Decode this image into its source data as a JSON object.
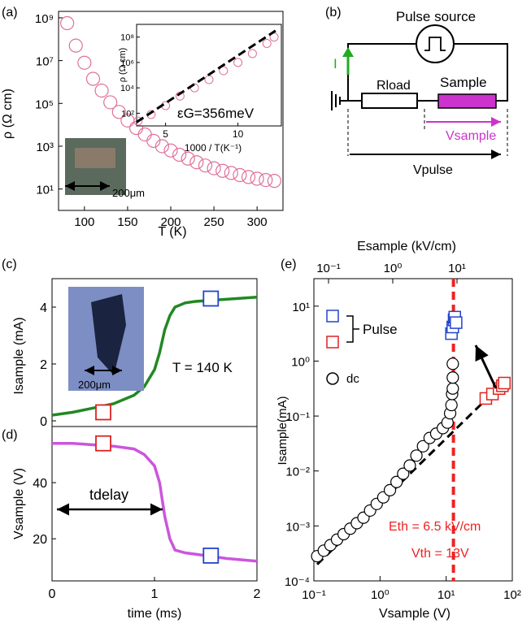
{
  "panels": {
    "a": {
      "label": "(a)",
      "xlabel": "T (K)",
      "ylabel": "ρ (Ω cm)",
      "scale_label": "200μm",
      "inset": {
        "xlabel": "1000 / T(K⁻¹)",
        "ylabel": "ρ (Ω cm)",
        "annotation": "εG=356meV",
        "xticks": [
          "5",
          "10"
        ],
        "yticks": [
          "10²",
          "10⁴",
          "10⁶",
          "10⁸"
        ]
      },
      "xticks": [
        "100",
        "150",
        "200",
        "250",
        "300"
      ],
      "yticks": [
        "10¹",
        "10³",
        "10⁵",
        "10⁷",
        "10⁹"
      ]
    },
    "b": {
      "label": "(b)",
      "pulse_source": "Pulse source",
      "current": "I",
      "rload": "Rload",
      "sample": "Sample",
      "vsample": "Vsample",
      "vpulse": "Vpulse",
      "colors": {
        "sample_fill": "#cc33cc",
        "arrow_current": "#22aa22",
        "arrow_vsample": "#cc33cc"
      }
    },
    "c": {
      "label": "(c)",
      "ylabel": "Isample (mA)",
      "annotation": "T = 140 K",
      "scale_label": "200μm",
      "yticks": [
        "0",
        "2",
        "4"
      ]
    },
    "d": {
      "label": "(d)",
      "ylabel": "Vsample (V)",
      "xlabel": "time (ms)",
      "annotation": "tdelay",
      "xticks": [
        "0",
        "1",
        "2"
      ],
      "yticks": [
        "20",
        "40"
      ]
    },
    "e": {
      "label": "(e)",
      "xlabel": "Vsample (V)",
      "ylabel": "Isample(mA)",
      "top_xlabel": "Esample (kV/cm)",
      "legend_pulse": "Pulse",
      "legend_dc": "dc",
      "eth": "Eth = 6.5 kV/cm",
      "vth": "Vth = 13V",
      "xticks": [
        "10⁻¹",
        "10⁰",
        "10¹",
        "10²"
      ],
      "top_xticks": [
        "10⁻¹",
        "10⁰",
        "10¹"
      ],
      "yticks": [
        "10⁻⁴",
        "10⁻³",
        "10⁻²",
        "10⁻¹",
        "10⁰",
        "10¹"
      ]
    }
  },
  "chart_data": [
    {
      "type": "scatter",
      "panel": "a",
      "xlabel": "T (K)",
      "ylabel": "ρ (Ω cm)",
      "xlim": [
        70,
        330
      ],
      "ylim_log10": [
        0,
        9.3
      ],
      "x": [
        80,
        90,
        100,
        110,
        120,
        130,
        140,
        150,
        160,
        170,
        180,
        190,
        200,
        210,
        220,
        230,
        240,
        250,
        260,
        270,
        280,
        290,
        300,
        310,
        320
      ],
      "log10_y": [
        8.75,
        7.7,
        6.9,
        6.15,
        5.6,
        5.05,
        4.6,
        4.2,
        3.85,
        3.55,
        3.25,
        3.0,
        2.8,
        2.6,
        2.42,
        2.25,
        2.1,
        1.97,
        1.85,
        1.75,
        1.65,
        1.56,
        1.48,
        1.42,
        1.38
      ],
      "color": "#e0709a"
    },
    {
      "type": "scatter",
      "panel": "a-inset",
      "xlabel": "1000 / T(K⁻¹)",
      "ylabel": "ρ (Ω cm)",
      "xlim": [
        3,
        13
      ],
      "ylim_log10": [
        1,
        9
      ],
      "x": [
        3.1,
        4,
        5,
        6,
        7,
        8,
        9,
        10,
        11,
        12,
        12.5
      ],
      "log10_y": [
        1.38,
        1.9,
        2.6,
        3.35,
        4.0,
        4.65,
        5.35,
        6.0,
        6.7,
        7.5,
        8.0
      ],
      "fit_x": [
        3.0,
        12.6
      ],
      "fit_log10_y": [
        1.3,
        8.5
      ],
      "color": "#e0709a"
    },
    {
      "type": "line",
      "panel": "c",
      "xlabel": "time (ms)",
      "ylabel": "Isample (mA)",
      "xlim": [
        0,
        2
      ],
      "ylim": [
        -0.2,
        5.0
      ],
      "x": [
        0,
        0.2,
        0.4,
        0.6,
        0.8,
        0.9,
        1.0,
        1.05,
        1.1,
        1.15,
        1.2,
        1.3,
        1.4,
        1.6,
        1.8,
        2.0
      ],
      "y": [
        0.2,
        0.3,
        0.45,
        0.6,
        0.9,
        1.2,
        1.8,
        2.4,
        3.2,
        3.7,
        4.0,
        4.15,
        4.2,
        4.25,
        4.3,
        4.35
      ],
      "markers": [
        {
          "x": 0.5,
          "y": 0.3,
          "color": "#dd2222"
        },
        {
          "x": 1.55,
          "y": 4.3,
          "color": "#2244cc"
        }
      ],
      "color": "#228822"
    },
    {
      "type": "line",
      "panel": "d",
      "xlabel": "time (ms)",
      "ylabel": "Vsample (V)",
      "xlim": [
        0,
        2
      ],
      "ylim": [
        5,
        60
      ],
      "x": [
        0,
        0.2,
        0.4,
        0.6,
        0.8,
        0.9,
        1.0,
        1.05,
        1.1,
        1.15,
        1.2,
        1.3,
        1.5,
        1.7,
        2.0
      ],
      "y": [
        54,
        54,
        53.5,
        53,
        52,
        50,
        46,
        40,
        28,
        20,
        16,
        15,
        14,
        13,
        12
      ],
      "markers": [
        {
          "x": 0.5,
          "y": 54,
          "color": "#dd2222"
        },
        {
          "x": 1.55,
          "y": 14,
          "color": "#2244cc"
        }
      ],
      "color": "#cc55dd"
    },
    {
      "type": "scatter",
      "panel": "e",
      "xlabel": "Vsample (V)",
      "ylabel": "Isample(mA)",
      "xlim_log10": [
        -1,
        2
      ],
      "ylim_log10": [
        -4,
        1.5
      ],
      "series": [
        {
          "name": "dc",
          "color": "#000000",
          "log10_x": [
            -0.95,
            -0.85,
            -0.75,
            -0.65,
            -0.55,
            -0.45,
            -0.35,
            -0.25,
            -0.15,
            -0.05,
            0.05,
            0.15,
            0.25,
            0.35,
            0.45,
            0.55,
            0.65,
            0.75,
            0.85,
            0.95,
            1.02,
            1.06,
            1.08,
            1.09,
            1.1,
            1.1,
            1.1
          ],
          "log10_y": [
            -3.55,
            -3.45,
            -3.35,
            -3.25,
            -3.15,
            -3.05,
            -2.95,
            -2.85,
            -2.72,
            -2.6,
            -2.48,
            -2.35,
            -2.2,
            -2.05,
            -1.9,
            -1.72,
            -1.55,
            -1.4,
            -1.32,
            -1.22,
            -1.12,
            -0.95,
            -0.8,
            -0.6,
            -0.5,
            -0.3,
            -0.05
          ]
        },
        {
          "name": "Pulse",
          "color": "#dd2222",
          "log10_x": [
            1.6,
            1.7,
            1.8,
            1.85,
            1.88
          ],
          "log10_y": [
            -0.68,
            -0.6,
            -0.5,
            -0.45,
            -0.4
          ]
        },
        {
          "name": "Pulse",
          "color": "#2244cc",
          "log10_x": [
            1.08,
            1.1,
            1.12,
            1.13,
            1.15
          ],
          "log10_y": [
            0.5,
            0.62,
            0.75,
            0.8,
            0.7
          ]
        }
      ],
      "fit_log10_x": [
        -0.95,
        1.9
      ],
      "fit_log10_y": [
        -3.7,
        -0.35
      ],
      "vline_log10_x": 1.11
    }
  ]
}
